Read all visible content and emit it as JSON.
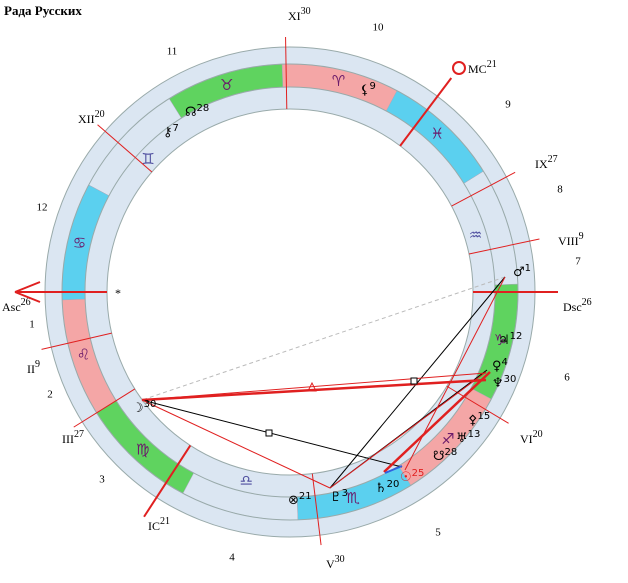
{
  "title": "Рада Русских",
  "cusps": [
    {
      "label": "Asc",
      "degree": "26"
    },
    {
      "label": "II",
      "degree": "9"
    },
    {
      "label": "III",
      "degree": "27"
    },
    {
      "label": "IC",
      "degree": "21"
    },
    {
      "label": "V",
      "degree": "30"
    },
    {
      "label": "VI",
      "degree": "20"
    },
    {
      "label": "Dsc",
      "degree": "26"
    },
    {
      "label": "VIII",
      "degree": "9"
    },
    {
      "label": "IX",
      "degree": "27"
    },
    {
      "label": "MC",
      "degree": "21"
    },
    {
      "label": "XI",
      "degree": "30"
    },
    {
      "label": "XII",
      "degree": "20"
    }
  ],
  "house_numbers": [
    "1",
    "2",
    "3",
    "4",
    "5",
    "6",
    "7",
    "8",
    "9",
    "10",
    "11",
    "12"
  ],
  "signs": [
    "♈",
    "♉",
    "♊",
    "♋",
    "♌",
    "♍",
    "♎",
    "♏",
    "♐",
    "♑",
    "♒",
    "♓"
  ],
  "planets": [
    {
      "glyph": "⚸",
      "degree": "9"
    },
    {
      "glyph": "☊",
      "degree": "28"
    },
    {
      "glyph": "⚷",
      "degree": "7"
    },
    {
      "glyph": "♂",
      "degree": "1"
    },
    {
      "glyph": "♃",
      "degree": "12"
    },
    {
      "glyph": "♀",
      "degree": "4"
    },
    {
      "glyph": "♆",
      "degree": "30"
    },
    {
      "glyph": "⚴",
      "degree": "15"
    },
    {
      "glyph": "♅",
      "degree": "13"
    },
    {
      "glyph": "☋",
      "degree": "28"
    },
    {
      "glyph": "☉",
      "degree": "25"
    },
    {
      "glyph": "♄",
      "degree": "20"
    },
    {
      "glyph": "♇",
      "degree": "3"
    },
    {
      "glyph": "⊗",
      "degree": "21"
    },
    {
      "glyph": "☽",
      "degree": "30"
    }
  ]
}
